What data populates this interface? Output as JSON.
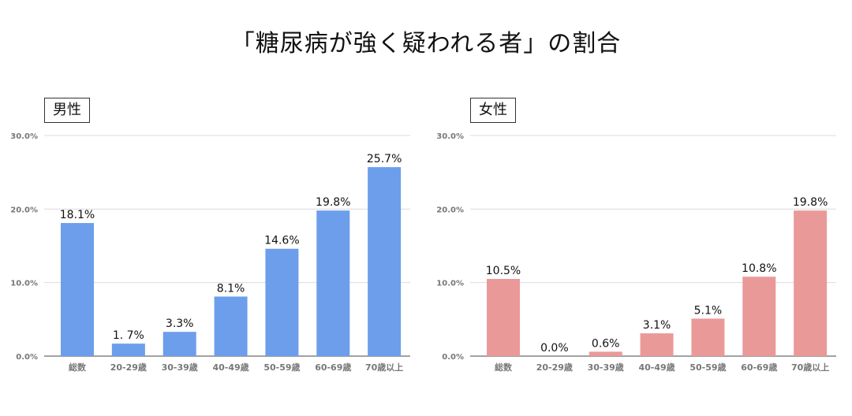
{
  "title": "「糖尿病が強く疑われる者」の割合",
  "chart_data": [
    {
      "type": "bar",
      "title": "男性",
      "categories": [
        "総数",
        "20-29歳",
        "30-39歳",
        "40-49歳",
        "50-59歳",
        "60-69歳",
        "70歳以上"
      ],
      "values": [
        18.1,
        1.7,
        3.3,
        8.1,
        14.6,
        19.8,
        25.7
      ],
      "value_labels": [
        "18.1%",
        "1. 7%",
        "3.3%",
        "8.1%",
        "14.6%",
        "19.8%",
        "25.7%"
      ],
      "ylim": [
        0,
        30
      ],
      "yticks": [
        "0.0%",
        "10.0%",
        "20.0%",
        "30.0%"
      ],
      "color": "#6d9eeb",
      "grid": true,
      "legend": "none"
    },
    {
      "type": "bar",
      "title": "女性",
      "categories": [
        "総数",
        "20-29歳",
        "30-39歳",
        "40-49歳",
        "50-59歳",
        "60-69歳",
        "70歳以上"
      ],
      "values": [
        10.5,
        0.0,
        0.6,
        3.1,
        5.1,
        10.8,
        19.8
      ],
      "value_labels": [
        "10.5%",
        "0.0%",
        "0.6%",
        "3.1%",
        "5.1%",
        "10.8%",
        "19.8%"
      ],
      "ylim": [
        0,
        30
      ],
      "yticks": [
        "0.0%",
        "10.0%",
        "20.0%",
        "30.0%"
      ],
      "color": "#ea9999",
      "grid": true,
      "legend": "none"
    }
  ]
}
